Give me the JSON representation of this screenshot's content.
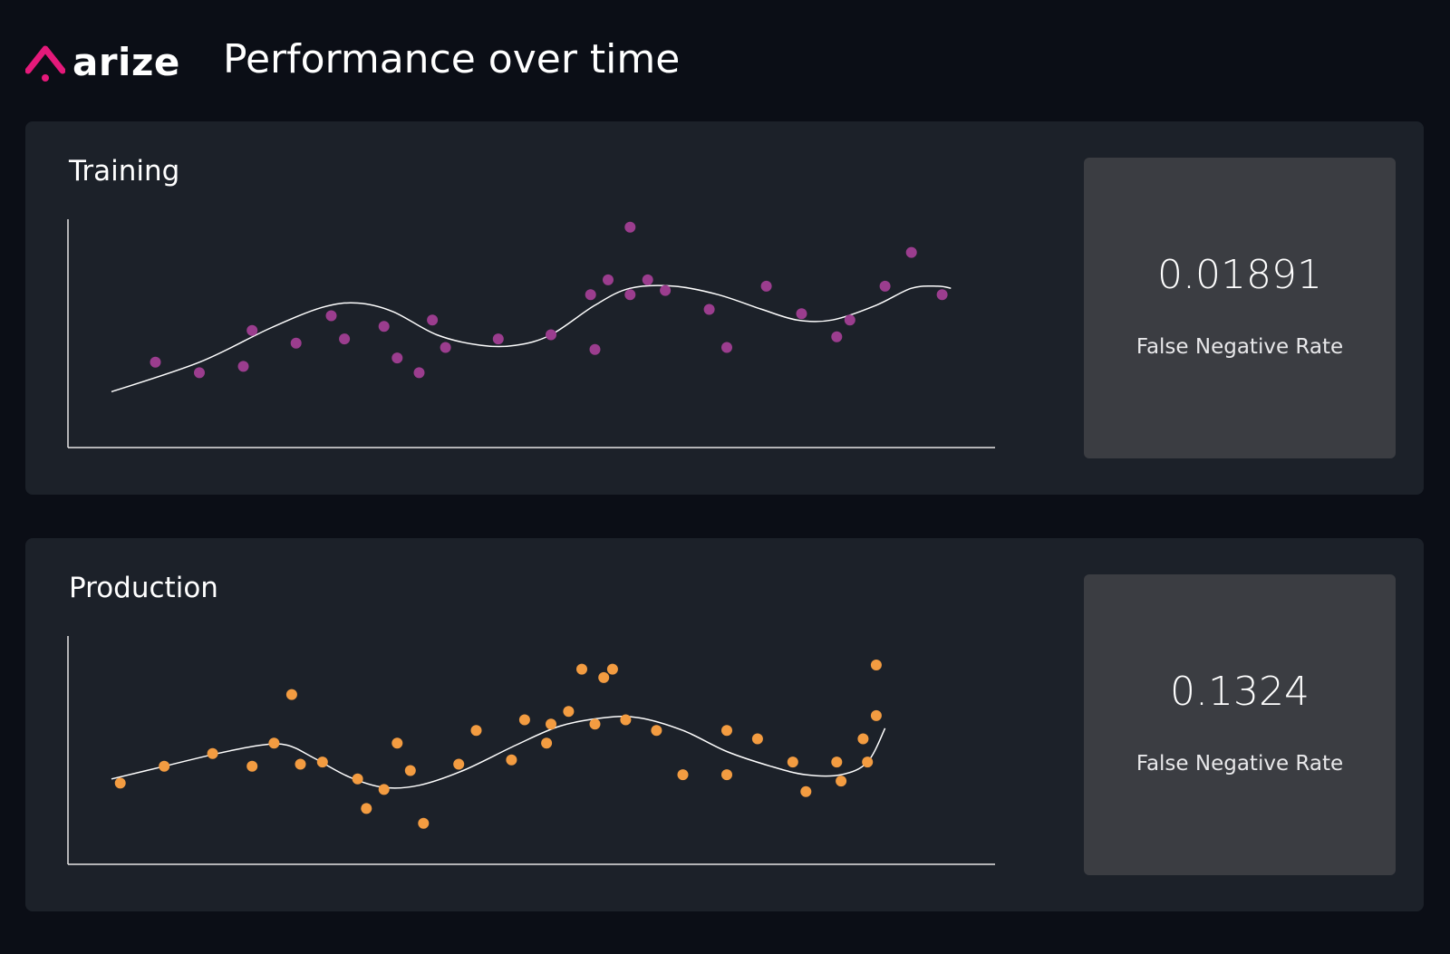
{
  "brand": {
    "name": "arize",
    "accent": "#e5197a"
  },
  "page": {
    "title": "Performance over time",
    "background": "#0b0e16"
  },
  "panels": [
    {
      "title": "Training",
      "metric": {
        "value": "0.01891",
        "label": "False Negative Rate"
      }
    },
    {
      "title": "Production",
      "metric": {
        "value": "0.1324",
        "label": "False Negative Rate"
      }
    }
  ],
  "chart_data": [
    {
      "type": "scatter",
      "title": "Training",
      "xlabel": "",
      "ylabel": "",
      "xlim": [
        0,
        100
      ],
      "ylim": [
        0,
        100
      ],
      "grid": false,
      "point_color": "#9b3d8e",
      "line_color": "#ffffff",
      "points": [
        {
          "x": 5,
          "y": 34
        },
        {
          "x": 10,
          "y": 29
        },
        {
          "x": 15,
          "y": 32
        },
        {
          "x": 16,
          "y": 49
        },
        {
          "x": 21,
          "y": 43
        },
        {
          "x": 25,
          "y": 56
        },
        {
          "x": 26.5,
          "y": 45
        },
        {
          "x": 31,
          "y": 51
        },
        {
          "x": 32.5,
          "y": 36
        },
        {
          "x": 35,
          "y": 29
        },
        {
          "x": 36.5,
          "y": 54
        },
        {
          "x": 38,
          "y": 41
        },
        {
          "x": 44,
          "y": 45
        },
        {
          "x": 50,
          "y": 47
        },
        {
          "x": 54.5,
          "y": 66
        },
        {
          "x": 55,
          "y": 40
        },
        {
          "x": 56.5,
          "y": 73
        },
        {
          "x": 59,
          "y": 98
        },
        {
          "x": 59,
          "y": 66
        },
        {
          "x": 61,
          "y": 73
        },
        {
          "x": 63,
          "y": 68
        },
        {
          "x": 68,
          "y": 59
        },
        {
          "x": 70,
          "y": 41
        },
        {
          "x": 74.5,
          "y": 70
        },
        {
          "x": 78.5,
          "y": 57
        },
        {
          "x": 82.5,
          "y": 46
        },
        {
          "x": 84,
          "y": 54
        },
        {
          "x": 88,
          "y": 70
        },
        {
          "x": 91,
          "y": 86
        },
        {
          "x": 94.5,
          "y": 66
        }
      ],
      "trend": [
        {
          "x": 0,
          "y": 20
        },
        {
          "x": 10,
          "y": 34
        },
        {
          "x": 18,
          "y": 50
        },
        {
          "x": 24,
          "y": 60
        },
        {
          "x": 28,
          "y": 62
        },
        {
          "x": 32,
          "y": 58
        },
        {
          "x": 37,
          "y": 47
        },
        {
          "x": 42,
          "y": 42
        },
        {
          "x": 46,
          "y": 42
        },
        {
          "x": 50,
          "y": 47
        },
        {
          "x": 55,
          "y": 61
        },
        {
          "x": 59,
          "y": 69
        },
        {
          "x": 64,
          "y": 70
        },
        {
          "x": 69,
          "y": 66
        },
        {
          "x": 74,
          "y": 59
        },
        {
          "x": 78,
          "y": 54
        },
        {
          "x": 82,
          "y": 54
        },
        {
          "x": 87,
          "y": 61
        },
        {
          "x": 91,
          "y": 69
        },
        {
          "x": 94,
          "y": 70
        },
        {
          "x": 95.5,
          "y": 69
        }
      ]
    },
    {
      "type": "scatter",
      "title": "Production",
      "xlabel": "",
      "ylabel": "",
      "xlim": [
        0,
        100
      ],
      "ylim": [
        0,
        100
      ],
      "grid": false,
      "point_color": "#f39c41",
      "line_color": "#ffffff",
      "points": [
        {
          "x": 1,
          "y": 32
        },
        {
          "x": 6,
          "y": 40
        },
        {
          "x": 11.5,
          "y": 46
        },
        {
          "x": 16,
          "y": 40
        },
        {
          "x": 18.5,
          "y": 51
        },
        {
          "x": 20.5,
          "y": 74
        },
        {
          "x": 21.5,
          "y": 41
        },
        {
          "x": 24,
          "y": 42
        },
        {
          "x": 28,
          "y": 34
        },
        {
          "x": 29,
          "y": 20
        },
        {
          "x": 31,
          "y": 29
        },
        {
          "x": 32.5,
          "y": 51
        },
        {
          "x": 34,
          "y": 38
        },
        {
          "x": 35.5,
          "y": 13
        },
        {
          "x": 39.5,
          "y": 41
        },
        {
          "x": 41.5,
          "y": 57
        },
        {
          "x": 45.5,
          "y": 43
        },
        {
          "x": 47,
          "y": 62
        },
        {
          "x": 49.5,
          "y": 51
        },
        {
          "x": 50,
          "y": 60
        },
        {
          "x": 52,
          "y": 66
        },
        {
          "x": 53.5,
          "y": 86
        },
        {
          "x": 55,
          "y": 60
        },
        {
          "x": 56,
          "y": 82
        },
        {
          "x": 57,
          "y": 86
        },
        {
          "x": 58.5,
          "y": 62
        },
        {
          "x": 62,
          "y": 57
        },
        {
          "x": 65,
          "y": 36
        },
        {
          "x": 70,
          "y": 57
        },
        {
          "x": 70,
          "y": 36
        },
        {
          "x": 73.5,
          "y": 53
        },
        {
          "x": 77.5,
          "y": 42
        },
        {
          "x": 79,
          "y": 28
        },
        {
          "x": 82.5,
          "y": 42
        },
        {
          "x": 83,
          "y": 33
        },
        {
          "x": 85.5,
          "y": 53
        },
        {
          "x": 86,
          "y": 42
        },
        {
          "x": 87,
          "y": 88
        },
        {
          "x": 87,
          "y": 64
        }
      ],
      "trend": [
        {
          "x": 0,
          "y": 34
        },
        {
          "x": 6,
          "y": 40
        },
        {
          "x": 12,
          "y": 46
        },
        {
          "x": 17,
          "y": 50
        },
        {
          "x": 20,
          "y": 50
        },
        {
          "x": 23,
          "y": 44
        },
        {
          "x": 27,
          "y": 35
        },
        {
          "x": 31,
          "y": 30
        },
        {
          "x": 35,
          "y": 31
        },
        {
          "x": 40,
          "y": 38
        },
        {
          "x": 46,
          "y": 50
        },
        {
          "x": 51,
          "y": 59
        },
        {
          "x": 56,
          "y": 63
        },
        {
          "x": 60,
          "y": 63
        },
        {
          "x": 65,
          "y": 57
        },
        {
          "x": 70,
          "y": 47
        },
        {
          "x": 75,
          "y": 40
        },
        {
          "x": 79,
          "y": 36
        },
        {
          "x": 83,
          "y": 36
        },
        {
          "x": 86,
          "y": 42
        },
        {
          "x": 88,
          "y": 58
        }
      ]
    }
  ]
}
